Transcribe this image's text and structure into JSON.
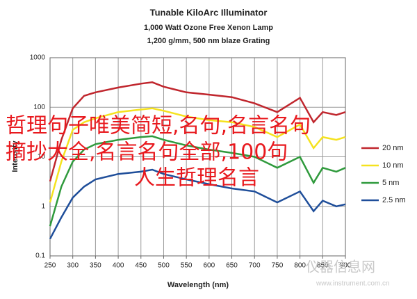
{
  "chart_data": {
    "type": "line",
    "title": "Tunable KiloArc Illuminator",
    "subtitle": [
      "1,000 Watt Ozone Free Xenon Lamp",
      "1,200 g/mm, 500 nm blaze Grating"
    ],
    "x_label": "Wavelength (nm)",
    "y_label": "Intensity",
    "log_y": true,
    "grid": true,
    "xlim": [
      250,
      900
    ],
    "xticks": [
      250,
      300,
      350,
      400,
      450,
      500,
      550,
      600,
      650,
      700,
      750,
      800,
      850,
      900
    ],
    "ylim": [
      0.1,
      1000
    ],
    "yticks": [
      0.1,
      1,
      10,
      100,
      1000
    ],
    "x": [
      250,
      275,
      300,
      325,
      350,
      400,
      450,
      475,
      500,
      550,
      600,
      650,
      700,
      750,
      800,
      830,
      850,
      880,
      900
    ],
    "series": [
      {
        "name": "20 nm",
        "color": "#c0262d",
        "values": [
          3.2,
          22,
          95,
          170,
          200,
          250,
          300,
          320,
          260,
          200,
          180,
          160,
          120,
          80,
          155,
          50,
          80,
          70,
          80
        ]
      },
      {
        "name": "10 nm",
        "color": "#f5e21e",
        "values": [
          1.2,
          8,
          35,
          50,
          60,
          80,
          90,
          95,
          85,
          65,
          55,
          50,
          40,
          25,
          45,
          15,
          25,
          22,
          25
        ]
      },
      {
        "name": "5 nm",
        "color": "#2f9a3c",
        "values": [
          0.4,
          2.5,
          8,
          14,
          18,
          22,
          25,
          26,
          22,
          17,
          14,
          12,
          10,
          6,
          10,
          3,
          6,
          5,
          6
        ]
      },
      {
        "name": "2.5 nm",
        "color": "#1f4e9a",
        "values": [
          0.22,
          0.6,
          1.5,
          2.5,
          3.5,
          4.5,
          5,
          5.5,
          4.5,
          3.5,
          2.8,
          2.3,
          2,
          1.2,
          2,
          0.8,
          1.3,
          1,
          1.1
        ]
      }
    ],
    "annotations": [
      "哲理句子唯美简短,名句,名言名句",
      "摘抄大全,名言名句全部,100句",
      "人生哲理名言",
      "仪器信息网",
      "www.instrument.com.cn"
    ]
  }
}
